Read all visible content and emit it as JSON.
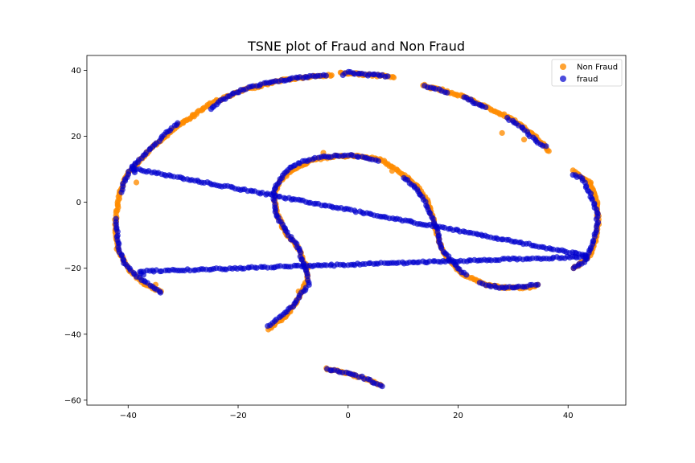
{
  "chart_data": {
    "type": "scatter",
    "title": "TSNE plot of Fraud and Non Fraud",
    "xlabel": "",
    "ylabel": "",
    "xlim": [
      -47.5,
      50.5
    ],
    "ylim": [
      -61.5,
      44.5
    ],
    "xticks": [
      -40,
      -20,
      0,
      20,
      40
    ],
    "yticks": [
      -60,
      -40,
      -20,
      0,
      20,
      40
    ],
    "xtick_labels": [
      "−40",
      "−20",
      "0",
      "20",
      "40"
    ],
    "ytick_labels": [
      "−60",
      "−40",
      "−20",
      "0",
      "20",
      "40"
    ],
    "grid": false,
    "legend_position": "top-right",
    "series": [
      {
        "name": "Non Fraud",
        "color": "#ff8c00",
        "curves": [
          [
            [
              -34,
              -27
            ],
            [
              -37,
              -25
            ],
            [
              -40,
              -20
            ],
            [
              -42,
              -14
            ],
            [
              -42.3,
              -6
            ],
            [
              -41.5,
              3
            ],
            [
              -40,
              9
            ],
            [
              -36,
              16
            ],
            [
              -31,
              23
            ],
            [
              -25,
              30
            ],
            [
              -19,
              34
            ],
            [
              -12,
              37
            ],
            [
              -7,
              38
            ],
            [
              -3,
              38.5
            ]
          ],
          [
            [
              -1.5,
              39.2
            ],
            [
              1.5,
              39
            ],
            [
              4,
              38.5
            ],
            [
              7,
              38.3
            ],
            [
              8.3,
              37.8
            ]
          ],
          [
            [
              13.5,
              35.5
            ],
            [
              17,
              34
            ],
            [
              21,
              32
            ],
            [
              25,
              29
            ],
            [
              30,
              25
            ],
            [
              34,
              20
            ],
            [
              36.5,
              15.5
            ]
          ],
          [
            [
              41,
              9.5
            ],
            [
              44,
              6
            ],
            [
              45.2,
              0
            ],
            [
              45.5,
              -6
            ],
            [
              45,
              -12
            ],
            [
              44,
              -16
            ],
            [
              42,
              -19
            ],
            [
              41,
              -20
            ]
          ],
          [
            [
              -14.5,
              -38.5
            ],
            [
              -11,
              -34
            ],
            [
              -9,
              -29
            ],
            [
              -7.5,
              -24
            ],
            [
              -7.5,
              -20
            ],
            [
              -9,
              -14
            ],
            [
              -11.5,
              -9
            ],
            [
              -13,
              -3
            ],
            [
              -13.5,
              2
            ],
            [
              -12.5,
              6
            ],
            [
              -10,
              10
            ],
            [
              -6,
              13
            ],
            [
              -2,
              14
            ],
            [
              2,
              14
            ],
            [
              6,
              13
            ],
            [
              9.5,
              9
            ],
            [
              12.5,
              5
            ],
            [
              14.5,
              0
            ],
            [
              15.5,
              -5
            ],
            [
              16.5,
              -12
            ],
            [
              18,
              -17
            ],
            [
              21,
              -22
            ],
            [
              25,
              -25
            ],
            [
              29,
              -26
            ],
            [
              33,
              -25.8
            ],
            [
              34.5,
              -25
            ]
          ],
          [
            [
              -4,
              -50.5
            ],
            [
              0,
              -52
            ],
            [
              3,
              -53.5
            ],
            [
              6,
              -55.5
            ]
          ],
          [
            [
              -38.5,
              6
            ]
          ],
          [
            [
              -4.5,
              15
            ],
            [
              2,
              39
            ],
            [
              -9,
              -27
            ],
            [
              32,
              19
            ],
            [
              28,
              21
            ],
            [
              -30,
              24
            ],
            [
              -28,
              26
            ],
            [
              10.5,
              7.5
            ],
            [
              8,
              9.5
            ],
            [
              -35,
              -25
            ],
            [
              -24,
              30.5
            ],
            [
              44,
              5.5
            ],
            [
              15,
              34.5
            ],
            [
              28,
              -26
            ]
          ]
        ]
      },
      {
        "name": "fraud",
        "color": "#0000cd",
        "curves": [
          [
            [
              -34,
              -27.3
            ],
            [
              -38,
              -23
            ],
            [
              -40.5,
              -19
            ],
            [
              -41.5,
              -15
            ],
            [
              -42,
              -10
            ],
            [
              -42.2,
              -5
            ]
          ],
          [
            [
              -41.3,
              3
            ],
            [
              -40.5,
              7
            ],
            [
              -39.5,
              10
            ],
            [
              -38,
              13
            ],
            [
              -35.5,
              17
            ],
            [
              -33,
              21
            ],
            [
              -31,
              24
            ]
          ],
          [
            [
              -25,
              28.5
            ],
            [
              -22,
              32
            ],
            [
              -18.5,
              34.5
            ],
            [
              -14,
              36.5
            ],
            [
              -10,
              37.5
            ],
            [
              -6,
              38.2
            ],
            [
              -4,
              38.4
            ]
          ],
          [
            [
              -1,
              38.8
            ],
            [
              0,
              39.5
            ],
            [
              3.5,
              38.5
            ],
            [
              4.5,
              38.7
            ],
            [
              7.2,
              38.2
            ]
          ],
          [
            [
              14,
              35.2
            ],
            [
              16.5,
              34.2
            ],
            [
              18,
              33.2
            ]
          ],
          [
            [
              21,
              32
            ],
            [
              23,
              30.2
            ],
            [
              25,
              28.8
            ]
          ],
          [
            [
              29,
              25.5
            ],
            [
              31.5,
              22.8
            ],
            [
              33.5,
              19.5
            ],
            [
              35,
              17.5
            ],
            [
              36,
              17
            ]
          ],
          [
            [
              41,
              8.5
            ],
            [
              42.5,
              7.2
            ],
            [
              43.8,
              3
            ],
            [
              44.5,
              0.5
            ],
            [
              45.3,
              -3
            ],
            [
              45.3,
              -6
            ],
            [
              45,
              -9
            ],
            [
              44.7,
              -11.5
            ],
            [
              43.7,
              -15.5
            ],
            [
              43.5,
              -17
            ],
            [
              42.5,
              -18.5
            ],
            [
              41,
              -20
            ]
          ],
          [
            [
              -14.7,
              -37.5
            ],
            [
              -13,
              -35.5
            ],
            [
              -11.5,
              -33.5
            ],
            [
              -9.8,
              -31
            ],
            [
              -8.2,
              -27
            ],
            [
              -7.2,
              -25
            ],
            [
              -7.5,
              -21
            ],
            [
              -8.5,
              -17
            ],
            [
              -9,
              -14
            ],
            [
              -10.5,
              -10.5
            ],
            [
              -11.5,
              -8
            ],
            [
              -12.5,
              -5.5
            ],
            [
              -13.2,
              -3
            ],
            [
              -13.5,
              1
            ],
            [
              -13.3,
              4.5
            ],
            [
              -11,
              10
            ],
            [
              -9.5,
              11.5
            ],
            [
              -7,
              13
            ],
            [
              -5,
              13.7
            ],
            [
              -3,
              14
            ],
            [
              -1,
              14.3
            ],
            [
              1.5,
              14
            ],
            [
              3,
              13.5
            ],
            [
              4.5,
              13
            ],
            [
              5.5,
              12.5
            ]
          ],
          [
            [
              10,
              7.5
            ],
            [
              11.3,
              6
            ],
            [
              12.5,
              4
            ],
            [
              13.5,
              1.5
            ],
            [
              14.5,
              -1.5
            ],
            [
              15.4,
              -5
            ],
            [
              16.3,
              -9
            ],
            [
              16.5,
              -12
            ],
            [
              17.5,
              -15.5
            ],
            [
              18.8,
              -17.5
            ],
            [
              20,
              -20
            ],
            [
              21.5,
              -22
            ]
          ],
          [
            [
              24,
              -24.5
            ],
            [
              26.5,
              -25.5
            ],
            [
              28,
              -26
            ],
            [
              32,
              -25.5
            ],
            [
              33.5,
              -25.2
            ],
            [
              34.5,
              -25
            ]
          ],
          [
            [
              -3.8,
              -50.5
            ],
            [
              -1.5,
              -51.3
            ],
            [
              0.5,
              -52.2
            ],
            [
              2.5,
              -53
            ],
            [
              3.5,
              -53.7
            ],
            [
              6.2,
              -55.8
            ]
          ],
          [
            [
              -38.8,
              9
            ],
            [
              -39.2,
              11
            ],
            [
              -38.5,
              10
            ],
            [
              43,
              -16
            ],
            [
              43.5,
              -16.5
            ],
            [
              -38,
              -21
            ],
            [
              -37.2,
              -22
            ]
          ]
        ]
      }
    ]
  }
}
